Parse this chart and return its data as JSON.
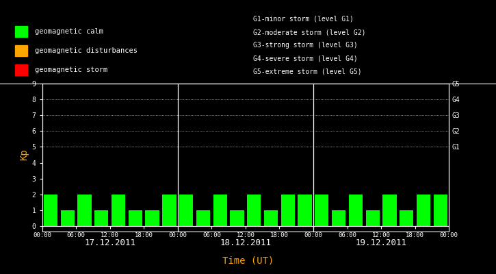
{
  "background_color": "#000000",
  "bar_color": "#00ff00",
  "bar_color_orange": "#ffa500",
  "bar_color_red": "#ff0000",
  "text_color": "#ffffff",
  "title_color": "#ffa500",
  "kp_values": [
    2,
    1,
    2,
    1,
    2,
    1,
    1,
    2,
    2,
    1,
    2,
    1,
    2,
    1,
    2,
    2,
    2,
    1,
    2,
    1,
    2,
    1,
    2,
    2
  ],
  "days": [
    "17.12.2011",
    "18.12.2011",
    "19.12.2011"
  ],
  "ylabel": "Kp",
  "xlabel": "Time (UT)",
  "ylim": [
    0,
    9
  ],
  "yticks": [
    0,
    1,
    2,
    3,
    4,
    5,
    6,
    7,
    8,
    9
  ],
  "right_labels": [
    "G1",
    "G2",
    "G3",
    "G4",
    "G5"
  ],
  "right_label_yvals": [
    5,
    6,
    7,
    8,
    9
  ],
  "dotted_yvals": [
    5,
    6,
    7,
    8,
    9
  ],
  "legend_items": [
    {
      "label": "geomagnetic calm",
      "color": "#00ff00"
    },
    {
      "label": "geomagnetic disturbances",
      "color": "#ffa500"
    },
    {
      "label": "geomagnetic storm",
      "color": "#ff0000"
    }
  ],
  "right_legend_lines": [
    "G1-minor storm (level G1)",
    "G2-moderate storm (level G2)",
    "G3-strong storm (level G3)",
    "G4-severe storm (level G4)",
    "G5-extreme storm (level G5)"
  ],
  "time_tick_labels": [
    "00:00",
    "06:00",
    "12:00",
    "18:00",
    "00:00",
    "06:00",
    "12:00",
    "18:00",
    "00:00",
    "06:00",
    "12:00",
    "18:00",
    "00:00"
  ],
  "font_family": "monospace"
}
